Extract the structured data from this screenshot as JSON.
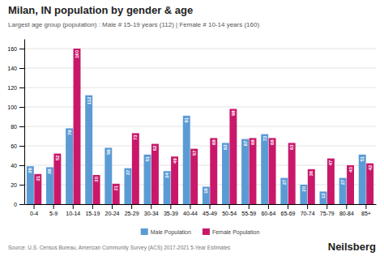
{
  "chart_data": {
    "type": "bar",
    "title": "Milan, IN population by gender & age",
    "subtitle": "Largest age group (population) : Male # 15-19 years (112) | Female # 10-14 years (160)",
    "categories": [
      "0-4",
      "5-9",
      "10-14",
      "15-19",
      "20-24",
      "25-29",
      "30-34",
      "35-39",
      "40-44",
      "45-49",
      "50-54",
      "55-59",
      "60-64",
      "65-69",
      "70-74",
      "75-79",
      "80-84",
      "85+"
    ],
    "series": [
      {
        "name": "Male Population",
        "color": "#5B9BD5",
        "values": [
          39,
          38,
          78,
          112,
          58,
          37,
          51,
          34,
          91,
          18,
          63,
          67,
          72,
          27,
          20,
          13,
          27,
          51
        ]
      },
      {
        "name": "Female Population",
        "color": "#C9186A",
        "values": [
          31,
          52,
          160,
          30,
          21,
          73,
          62,
          49,
          57,
          68,
          98,
          68,
          68,
          63,
          36,
          47,
          40,
          42
        ]
      }
    ],
    "ylim": [
      0,
      170
    ],
    "yticks": [
      0,
      20,
      40,
      60,
      80,
      100,
      120,
      140,
      160
    ],
    "grid": true,
    "legend": "bottom",
    "data_labels": true,
    "annotations": [
      "Source: U.S. Census Bureau, American Community Survey (ACS) 2017-2021 5-Year Estimates",
      "Neilsberg"
    ]
  }
}
